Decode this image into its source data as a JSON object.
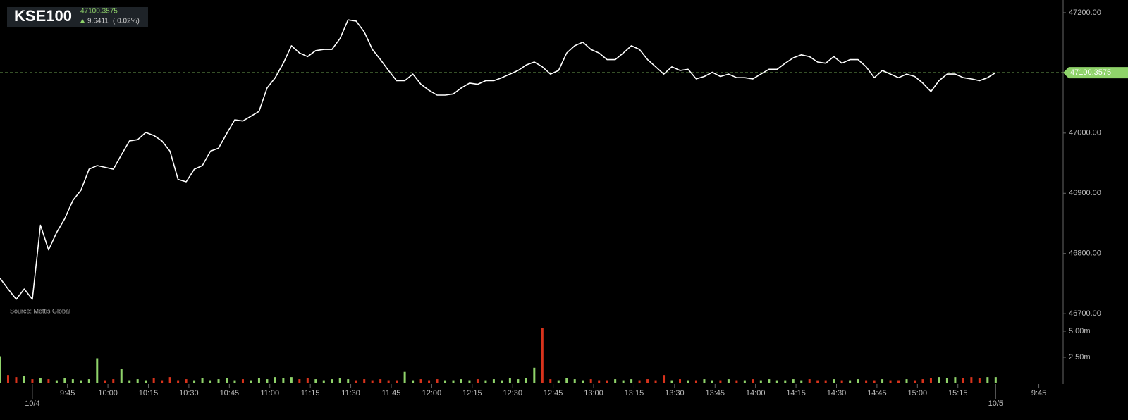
{
  "chart_data": {
    "type": "line",
    "symbol": "KSE100",
    "last": 47100.3575,
    "change": "9.6411",
    "change_pct": "( 0.02%)",
    "source": "Source: Mettis Global",
    "color": "#ffffff",
    "up_color": "#8fd36a",
    "down_color": "#d8331c",
    "x": [
      560,
      563,
      566,
      569,
      572,
      575,
      578,
      581,
      584,
      587,
      590,
      593,
      596,
      599,
      602,
      605,
      608,
      611,
      614,
      617,
      620,
      623,
      626,
      629,
      632,
      635,
      638,
      641,
      644,
      647,
      650,
      653,
      656,
      659,
      662,
      665,
      668,
      671,
      674,
      677,
      680,
      683,
      686,
      689,
      692,
      695,
      698,
      701,
      704,
      707,
      710,
      713,
      716,
      719,
      722,
      725,
      728,
      731,
      734,
      737,
      740,
      743,
      746,
      749,
      752,
      755,
      758,
      761,
      764,
      767,
      770,
      773,
      776,
      779,
      782,
      785,
      788,
      791,
      794,
      797,
      800,
      803,
      806,
      809,
      812,
      815,
      818,
      821,
      824,
      827,
      830,
      833,
      836,
      839,
      842,
      845,
      848,
      851,
      854,
      857,
      860,
      863,
      866,
      869,
      872,
      875,
      878,
      881,
      884,
      887,
      890,
      893,
      896,
      899,
      902,
      905,
      908,
      911,
      914,
      917,
      920,
      923,
      926,
      929
    ],
    "values": [
      46759,
      46741,
      46724,
      46741,
      46724,
      46847,
      46806,
      46835,
      46858,
      46888,
      46905,
      46940,
      46946,
      46943,
      46940,
      46964,
      46987,
      46989,
      47001,
      46996,
      46987,
      46970,
      46923,
      46919,
      46940,
      46946,
      46970,
      46975,
      46999,
      47022,
      47020,
      47028,
      47036,
      47075,
      47092,
      47116,
      47145,
      47133,
      47127,
      47137,
      47139,
      47139,
      47157,
      47188,
      47186,
      47168,
      47139,
      47122,
      47104,
      47087,
      47087,
      47098,
      47081,
      47071,
      47063,
      47063,
      47065,
      47075,
      47083,
      47081,
      47087,
      47087,
      47092,
      47098,
      47104,
      47113,
      47118,
      47110,
      47098,
      47104,
      47133,
      47145,
      47151,
      47139,
      47133,
      47122,
      47122,
      47133,
      47145,
      47139,
      47122,
      47110,
      47098,
      47110,
      47104,
      47106,
      47090,
      47094,
      47101,
      47094,
      47098,
      47092,
      47092,
      47090,
      47098,
      47106,
      47106,
      47116,
      47125,
      47130,
      47127,
      47118,
      47116,
      47127,
      47116,
      47122,
      47122,
      47110,
      47092,
      47104,
      47098,
      47092,
      47098,
      47094,
      47083,
      47069,
      47087,
      47098,
      47098,
      47092,
      47090,
      47087,
      47092,
      47100.3575
    ],
    "volume": [
      2.6,
      0.8,
      0.6,
      0.7,
      0.4,
      0.5,
      0.4,
      0.3,
      0.5,
      0.4,
      0.3,
      0.4,
      2.4,
      0.3,
      0.4,
      1.4,
      0.3,
      0.4,
      0.3,
      0.5,
      0.3,
      0.6,
      0.3,
      0.4,
      0.3,
      0.5,
      0.3,
      0.4,
      0.5,
      0.3,
      0.4,
      0.3,
      0.5,
      0.4,
      0.6,
      0.5,
      0.6,
      0.4,
      0.5,
      0.4,
      0.3,
      0.4,
      0.5,
      0.4,
      0.3,
      0.4,
      0.3,
      0.4,
      0.3,
      0.3,
      1.1,
      0.3,
      0.4,
      0.3,
      0.4,
      0.3,
      0.3,
      0.4,
      0.3,
      0.4,
      0.3,
      0.4,
      0.3,
      0.5,
      0.4,
      0.5,
      1.5,
      5.3,
      0.4,
      0.3,
      0.5,
      0.4,
      0.3,
      0.4,
      0.3,
      0.3,
      0.4,
      0.3,
      0.4,
      0.3,
      0.4,
      0.3,
      0.8,
      0.3,
      0.4,
      0.3,
      0.3,
      0.4,
      0.3,
      0.3,
      0.4,
      0.3,
      0.3,
      0.4,
      0.3,
      0.4,
      0.3,
      0.3,
      0.4,
      0.3,
      0.4,
      0.3,
      0.3,
      0.4,
      0.3,
      0.3,
      0.4,
      0.3,
      0.3,
      0.4,
      0.3,
      0.3,
      0.4,
      0.3,
      0.4,
      0.5,
      0.6,
      0.5,
      0.6,
      0.5,
      0.6,
      0.5,
      0.6,
      0.6
    ],
    "xlim": [
      560,
      954
    ],
    "ylim": [
      46692,
      47221
    ],
    "vlim": [
      0,
      6.15
    ],
    "yticks": [
      {
        "value": 46700,
        "label": "46700.00"
      },
      {
        "value": 46800,
        "label": "46800.00"
      },
      {
        "value": 46900,
        "label": "46900.00"
      },
      {
        "value": 47000,
        "label": "47000.00"
      },
      {
        "value": 47200,
        "label": "47200.00"
      }
    ],
    "vticks": [
      {
        "value": 2.5,
        "label": "2.50m"
      },
      {
        "value": 5,
        "label": "5.00m"
      }
    ],
    "xticks": [
      {
        "value": 585,
        "label": "9:45"
      },
      {
        "value": 600,
        "label": "10:00"
      },
      {
        "value": 615,
        "label": "10:15"
      },
      {
        "value": 630,
        "label": "10:30"
      },
      {
        "value": 645,
        "label": "10:45"
      },
      {
        "value": 660,
        "label": "11:00"
      },
      {
        "value": 675,
        "label": "11:15"
      },
      {
        "value": 690,
        "label": "11:30"
      },
      {
        "value": 705,
        "label": "11:45"
      },
      {
        "value": 720,
        "label": "12:00"
      },
      {
        "value": 735,
        "label": "12:15"
      },
      {
        "value": 750,
        "label": "12:30"
      },
      {
        "value": 765,
        "label": "12:45"
      },
      {
        "value": 780,
        "label": "13:00"
      },
      {
        "value": 795,
        "label": "13:15"
      },
      {
        "value": 810,
        "label": "13:30"
      },
      {
        "value": 825,
        "label": "13:45"
      },
      {
        "value": 840,
        "label": "14:00"
      },
      {
        "value": 855,
        "label": "14:15"
      },
      {
        "value": 870,
        "label": "14:30"
      },
      {
        "value": 885,
        "label": "14:45"
      },
      {
        "value": 900,
        "label": "15:00"
      },
      {
        "value": 915,
        "label": "15:15"
      },
      {
        "value": 945,
        "label": "9:45"
      }
    ],
    "date_ticks": [
      {
        "value": 572,
        "label": "10/4"
      },
      {
        "value": 929,
        "label": "10/5"
      }
    ]
  }
}
